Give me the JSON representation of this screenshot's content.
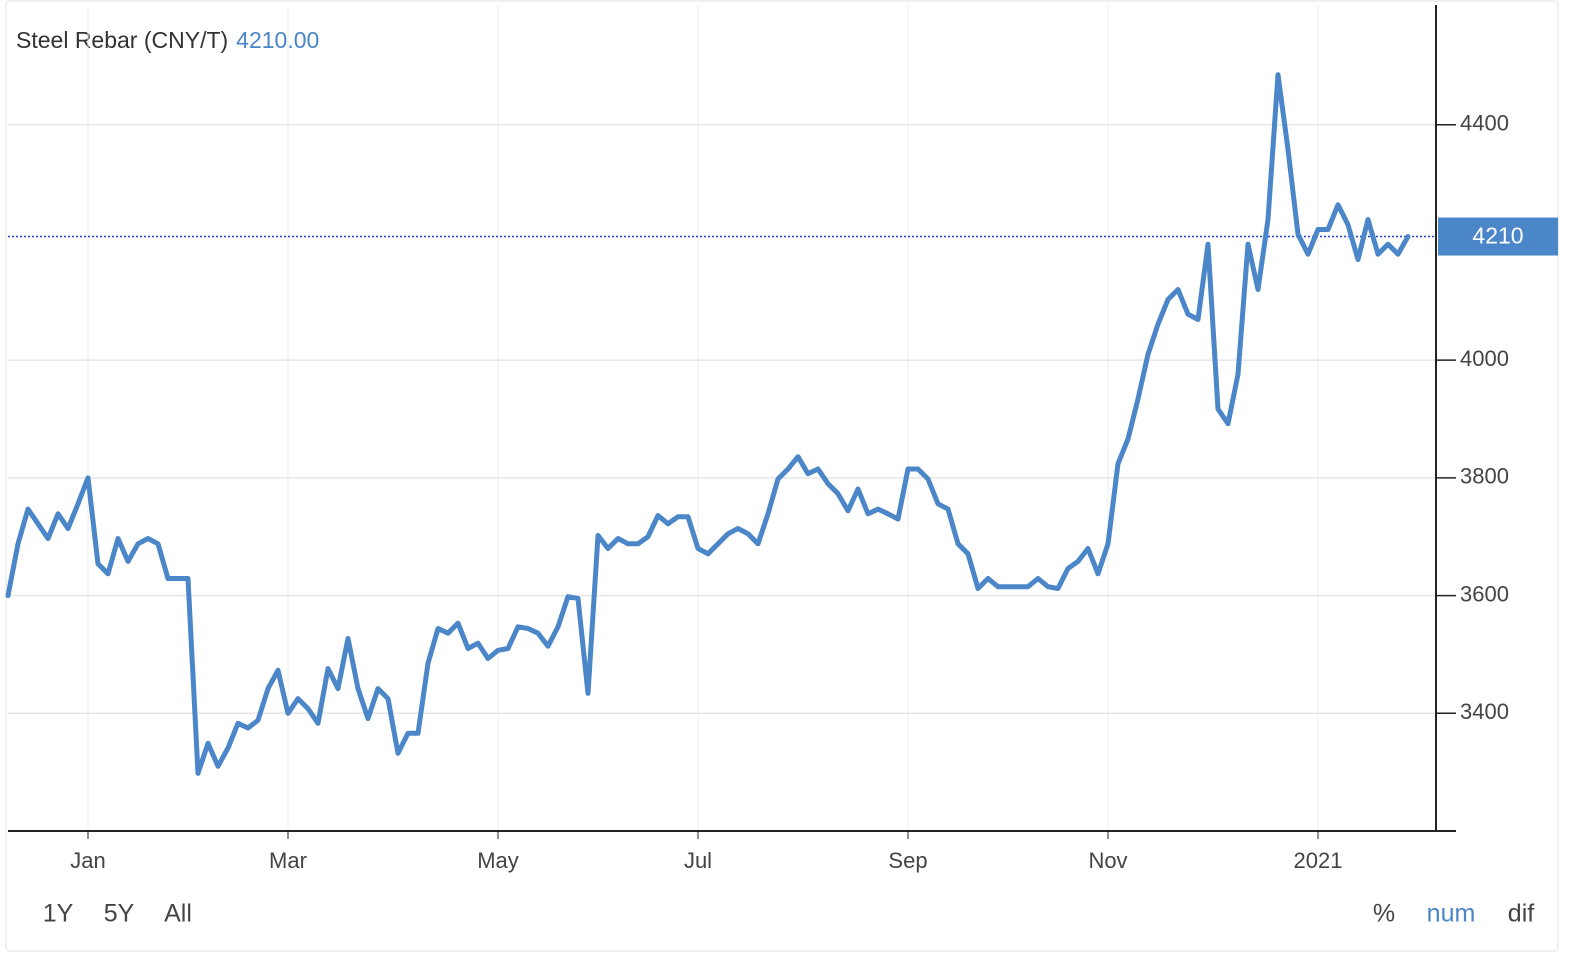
{
  "chart_data": {
    "type": "line",
    "title": "Steel Rebar (CNY/T)",
    "color": "#4a86c8",
    "current": {
      "value": 4210,
      "label": "4210.00"
    },
    "categories": [
      null,
      null,
      null,
      null,
      null,
      null,
      null,
      null,
      "Jan",
      null,
      null,
      null,
      null,
      null,
      null,
      null,
      null,
      null,
      null,
      null,
      null,
      null,
      null,
      null,
      null,
      null,
      null,
      null,
      "Mar",
      null,
      null,
      null,
      null,
      null,
      null,
      null,
      null,
      null,
      null,
      null,
      null,
      null,
      null,
      null,
      null,
      null,
      null,
      null,
      null,
      "May",
      null,
      null,
      null,
      null,
      null,
      null,
      null,
      null,
      null,
      null,
      null,
      null,
      null,
      null,
      null,
      null,
      null,
      null,
      null,
      "Jul",
      null,
      null,
      null,
      null,
      null,
      null,
      null,
      null,
      null,
      null,
      null,
      null,
      null,
      null,
      null,
      null,
      null,
      null,
      null,
      null,
      "Sep",
      null,
      null,
      null,
      null,
      null,
      null,
      null,
      null,
      null,
      null,
      null,
      null,
      null,
      null,
      null,
      null,
      null,
      null,
      null,
      "Nov",
      null,
      null,
      null,
      null,
      null,
      null,
      null,
      null,
      null,
      null,
      null,
      null,
      null,
      null,
      null,
      null,
      null,
      null,
      null,
      null,
      "2021",
      null,
      null,
      null,
      null,
      null,
      null,
      null,
      null,
      null
    ],
    "values": [
      3600,
      3688,
      3747,
      3722,
      3697,
      3739,
      3714,
      3756,
      3800,
      3654,
      3637,
      3697,
      3658,
      3688,
      3697,
      3688,
      3629,
      3629,
      3629,
      3298,
      3349,
      3310,
      3341,
      3383,
      3375,
      3388,
      3442,
      3473,
      3400,
      3425,
      3408,
      3383,
      3476,
      3442,
      3527,
      3442,
      3391,
      3442,
      3425,
      3332,
      3366,
      3366,
      3485,
      3544,
      3536,
      3553,
      3510,
      3519,
      3493,
      3507,
      3510,
      3547,
      3544,
      3536,
      3514,
      3547,
      3598,
      3595,
      3434,
      3702,
      3680,
      3697,
      3688,
      3688,
      3700,
      3736,
      3722,
      3734,
      3734,
      3680,
      3671,
      3688,
      3705,
      3714,
      3705,
      3688,
      3739,
      3798,
      3815,
      3836,
      3807,
      3815,
      3790,
      3773,
      3744,
      3781,
      3739,
      3747,
      3739,
      3730,
      3815,
      3815,
      3798,
      3756,
      3747,
      3688,
      3671,
      3612,
      3629,
      3615,
      3615,
      3615,
      3615,
      3629,
      3615,
      3612,
      3646,
      3658,
      3680,
      3637,
      3688,
      3824,
      3866,
      3934,
      4010,
      4061,
      4103,
      4120,
      4078,
      4069,
      4197,
      3917,
      3892,
      3976,
      4197,
      4120,
      4239,
      4485,
      4358,
      4214,
      4180,
      4222,
      4222,
      4264,
      4230,
      4171,
      4239,
      4180,
      4197,
      4180,
      4210
    ],
    "ylim": [
      3200,
      4600
    ],
    "yticks": [
      3400,
      3600,
      3800,
      4000,
      4400
    ],
    "grid": true,
    "range_buttons": [
      "1Y",
      "5Y",
      "All"
    ],
    "mode_buttons": [
      "%",
      "num",
      "dif"
    ],
    "active_mode": "num"
  }
}
